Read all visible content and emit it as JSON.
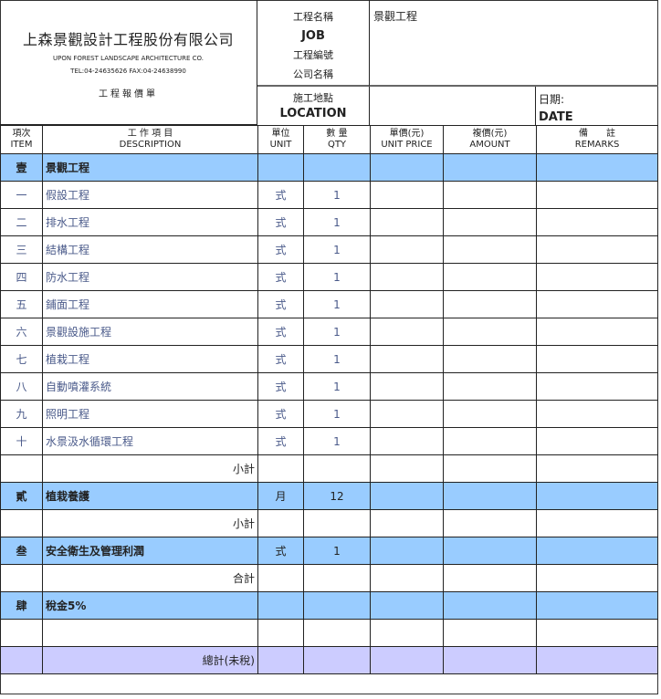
{
  "company": {
    "name_zh": "上森景觀設計工程股份有限公司",
    "name_en": "UPON FOREST LANDSCAPE ARCHITECTURE CO.",
    "contact": "TEL:04-24635626  FAX:04-24638990",
    "doc_title": "工程報價單"
  },
  "info": {
    "job_label_zh": "工程名稱",
    "job_label_en": "JOB",
    "job_value": "景觀工程",
    "job_no_label": "工程編號",
    "company_label": "公司名稱",
    "location_label_zh": "施工地點",
    "location_label_en": "LOCATION",
    "date_label_zh": "日期:",
    "date_label_en": "DATE"
  },
  "columns": [
    {
      "zh": "項次",
      "en": "ITEM"
    },
    {
      "zh": "工 作 項 目",
      "en": "DESCRIPTION"
    },
    {
      "zh": "單位",
      "en": "UNIT"
    },
    {
      "zh": "數 量",
      "en": "QTY"
    },
    {
      "zh": "單價(元)",
      "en": "UNIT PRICE"
    },
    {
      "zh": "複價(元)",
      "en": "AMOUNT"
    },
    {
      "zh": "備　　註",
      "en": "REMARKS"
    }
  ],
  "rows": [
    {
      "type": "cat",
      "no": "壹",
      "desc": "景觀工程",
      "unit": "",
      "qty": ""
    },
    {
      "type": "item",
      "no": "一",
      "desc": "假設工程",
      "unit": "式",
      "qty": "1"
    },
    {
      "type": "item",
      "no": "二",
      "desc": "排水工程",
      "unit": "式",
      "qty": "1"
    },
    {
      "type": "item",
      "no": "三",
      "desc": "結構工程",
      "unit": "式",
      "qty": "1"
    },
    {
      "type": "item",
      "no": "四",
      "desc": "防水工程",
      "unit": "式",
      "qty": "1"
    },
    {
      "type": "item",
      "no": "五",
      "desc": "鋪面工程",
      "unit": "式",
      "qty": "1"
    },
    {
      "type": "item",
      "no": "六",
      "desc": "景觀設施工程",
      "unit": "式",
      "qty": "1"
    },
    {
      "type": "item",
      "no": "七",
      "desc": "植栽工程",
      "unit": "式",
      "qty": "1"
    },
    {
      "type": "item",
      "no": "八",
      "desc": "自動噴灌系統",
      "unit": "式",
      "qty": "1"
    },
    {
      "type": "item",
      "no": "九",
      "desc": "照明工程",
      "unit": "式",
      "qty": "1"
    },
    {
      "type": "item",
      "no": "十",
      "desc": "水景汲水循環工程",
      "unit": "式",
      "qty": "1"
    },
    {
      "type": "sub",
      "no": "",
      "desc": "小計",
      "unit": "",
      "qty": ""
    },
    {
      "type": "cat",
      "no": "貳",
      "desc": "植栽養護",
      "unit": "月",
      "qty": "12"
    },
    {
      "type": "sub",
      "no": "",
      "desc": "小計",
      "unit": "",
      "qty": ""
    },
    {
      "type": "cat",
      "no": "叁",
      "desc": "安全衛生及管理利潤",
      "unit": "式",
      "qty": "1"
    },
    {
      "type": "sub",
      "no": "",
      "desc": "合計",
      "unit": "",
      "qty": ""
    },
    {
      "type": "cat",
      "no": "肆",
      "desc": "稅金5%",
      "unit": "",
      "qty": ""
    },
    {
      "type": "blank",
      "no": "",
      "desc": "",
      "unit": "",
      "qty": ""
    },
    {
      "type": "total",
      "no": "",
      "desc": "總計(未稅)",
      "unit": "",
      "qty": ""
    }
  ],
  "colors": {
    "category": "#99ccff",
    "total": "#ccccff",
    "item_text": "#4a5a8a"
  }
}
